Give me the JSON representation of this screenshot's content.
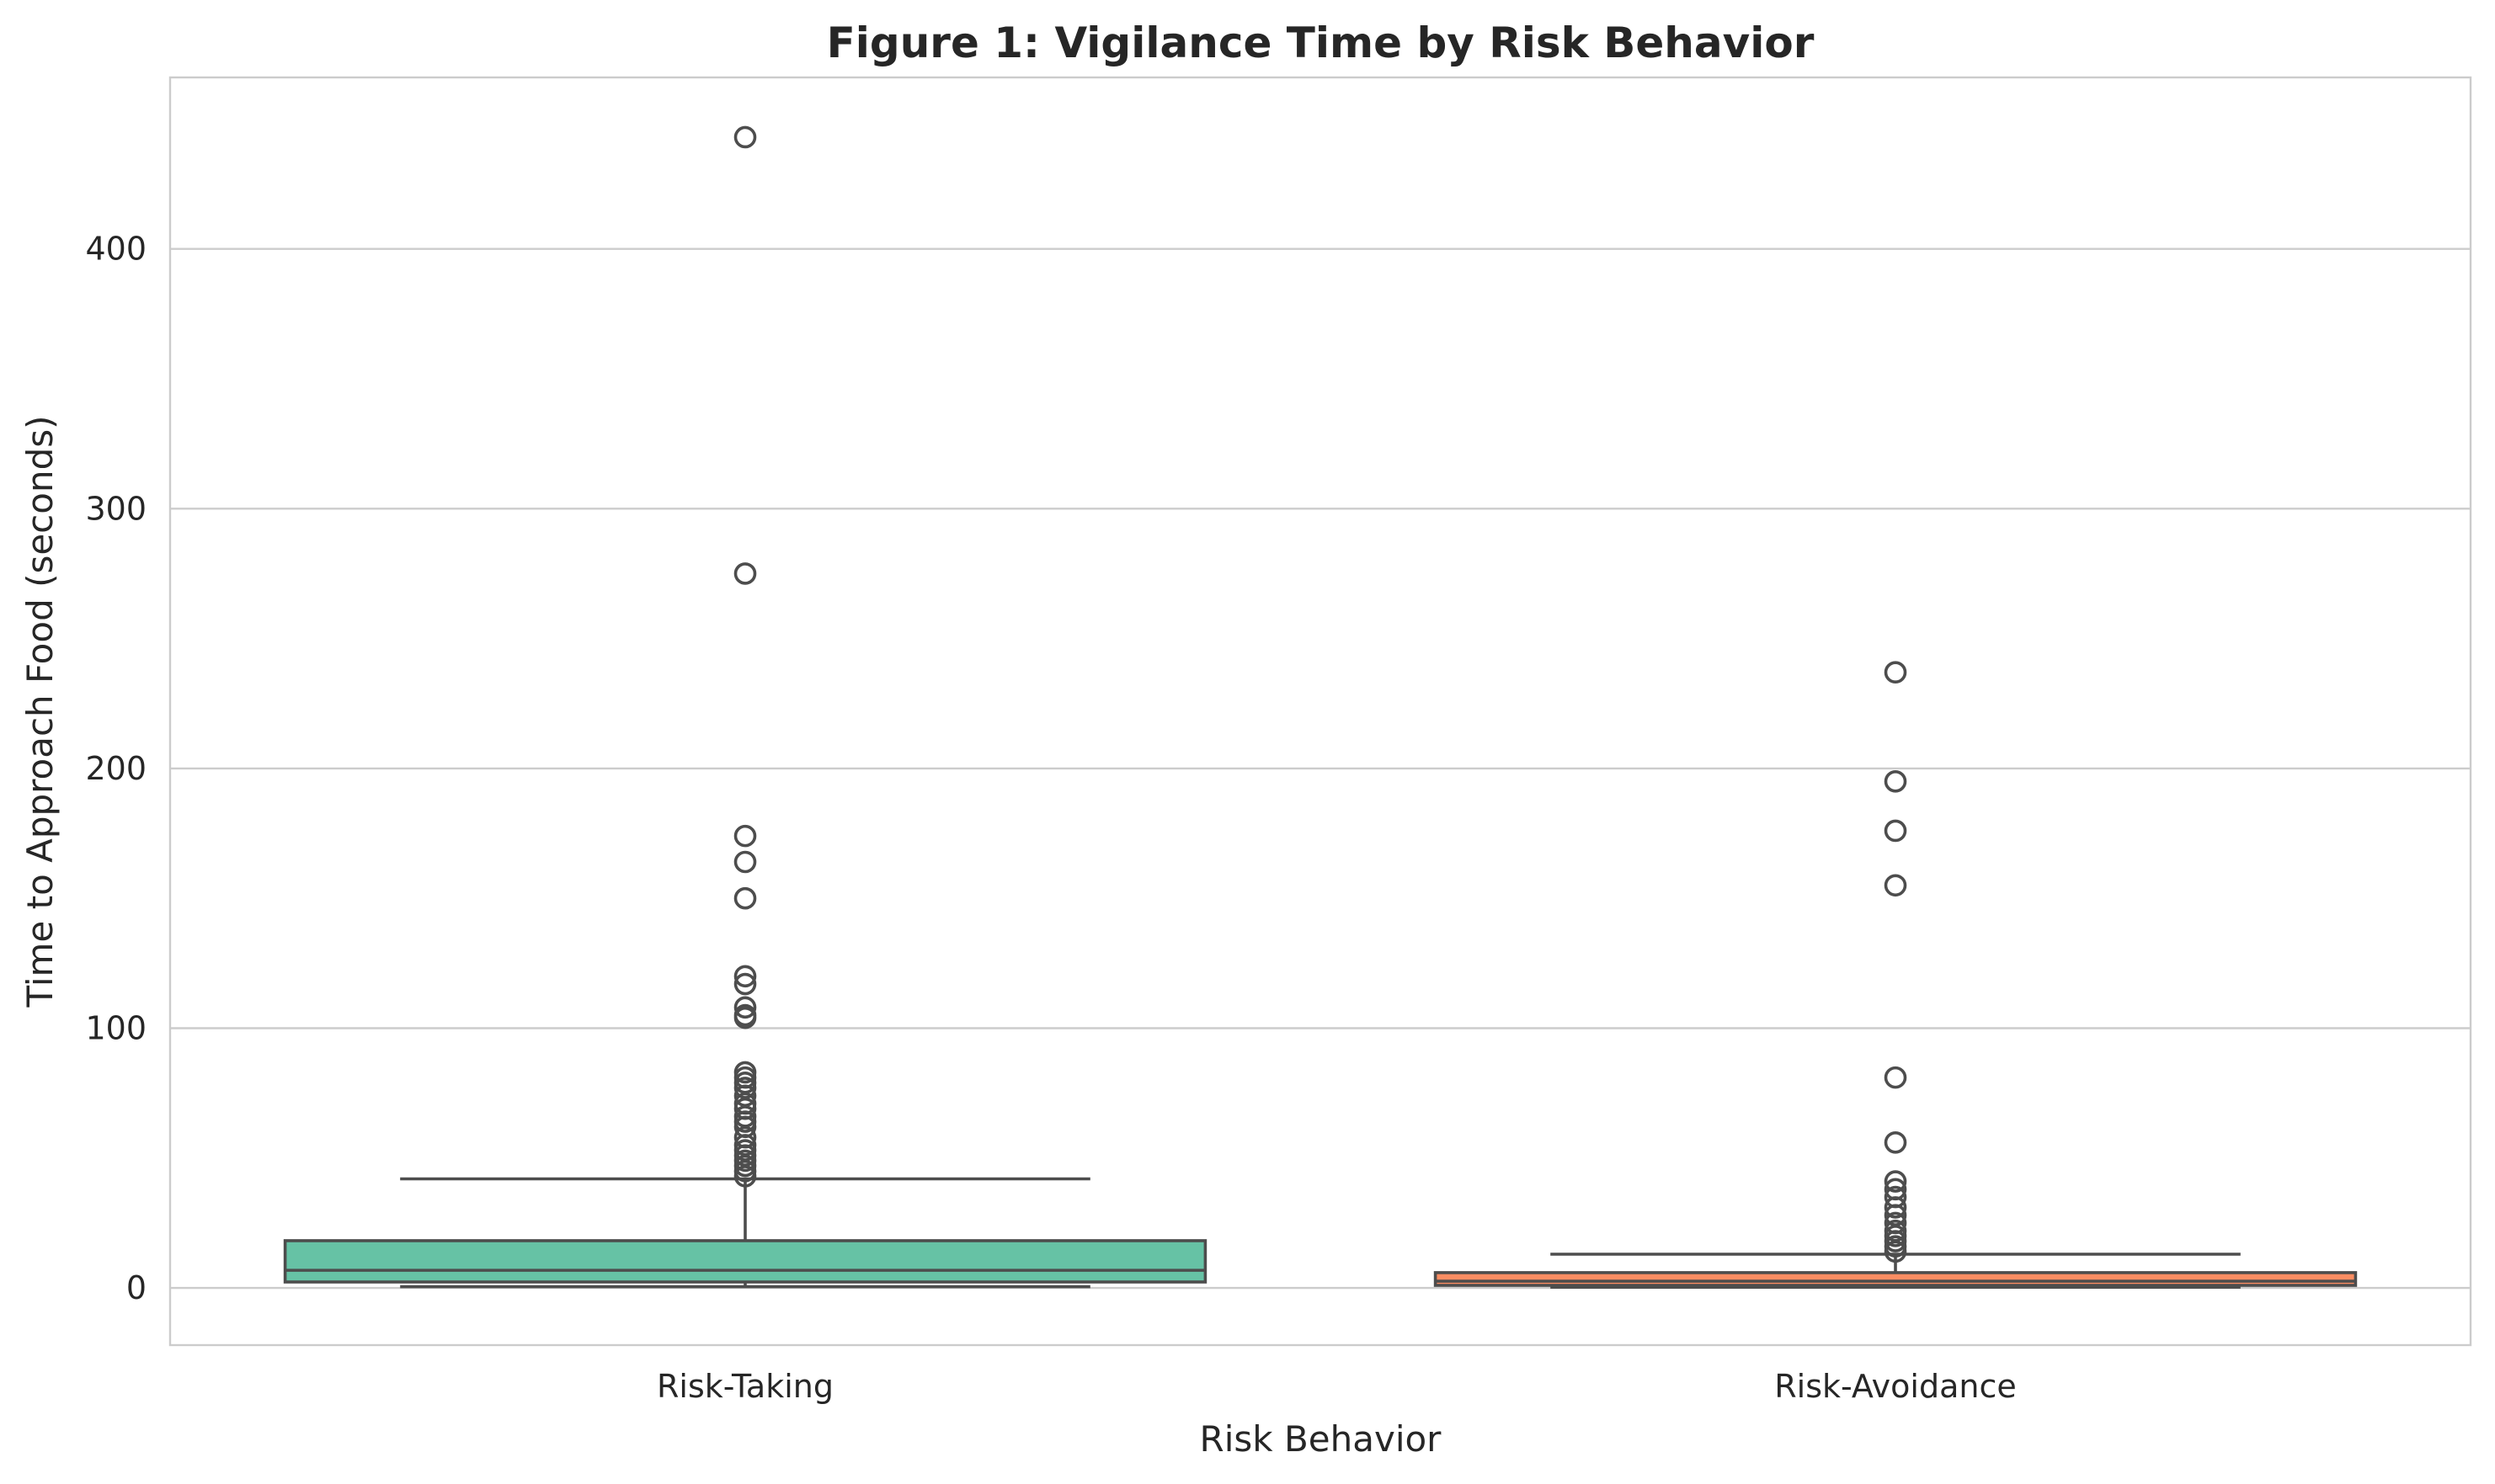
{
  "chart_data": {
    "type": "box",
    "title": "Figure 1: Vigilance Time by Risk Behavior",
    "xlabel": "Risk Behavior",
    "ylabel": "Time to Approach Food (seconds)",
    "ylim": [
      -22,
      466
    ],
    "yticks": [
      0,
      100,
      200,
      300,
      400
    ],
    "grid": "horizontal",
    "categories": [
      "Risk-Taking",
      "Risk-Avoidance"
    ],
    "boxes": [
      {
        "category": "Risk-Taking",
        "color": "#66c2a5",
        "whisker_low": 0.5,
        "q1": 2.3,
        "median": 6.8,
        "q3": 18.2,
        "whisker_high": 42,
        "outliers": [
          443,
          275,
          174,
          164,
          150,
          120,
          117,
          108,
          105,
          104,
          83,
          81,
          79,
          77,
          74,
          71,
          69,
          66,
          64,
          62,
          58,
          55,
          53,
          51,
          49,
          47,
          45,
          43
        ]
      },
      {
        "category": "Risk-Avoidance",
        "color": "#fc8d62",
        "whisker_low": 0.3,
        "q1": 1.0,
        "median": 2.6,
        "q3": 5.9,
        "whisker_high": 13,
        "outliers": [
          237,
          195,
          176,
          155,
          81,
          56,
          41,
          38,
          35,
          31,
          28,
          25,
          22,
          20,
          18,
          16,
          14
        ]
      }
    ]
  }
}
